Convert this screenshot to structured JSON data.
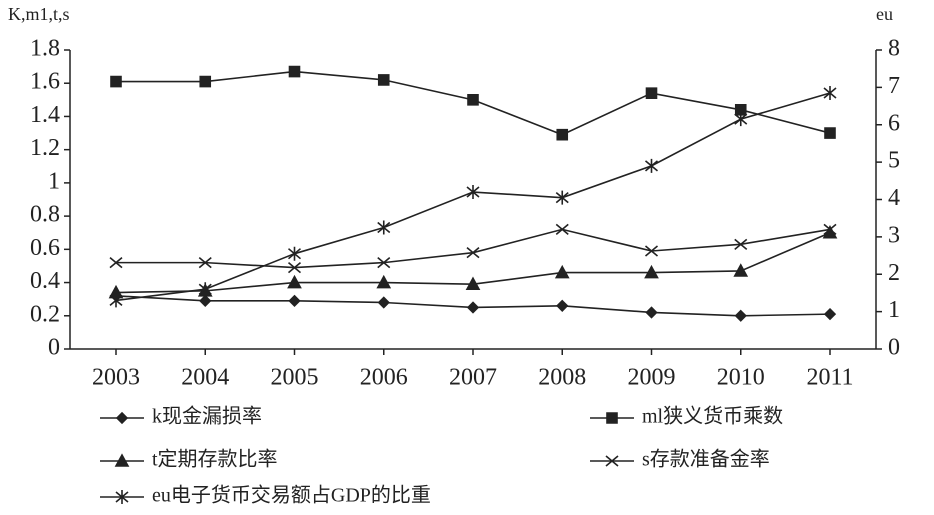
{
  "chart_data": {
    "type": "line",
    "ylabel": "K,m1,t,s",
    "y2label": "eu",
    "categories": [
      "2003",
      "2004",
      "2005",
      "2006",
      "2007",
      "2008",
      "2009",
      "2010",
      "2011"
    ],
    "ylim": [
      0,
      1.8
    ],
    "yticks": [
      0,
      0.2,
      0.4,
      0.6,
      0.8,
      1,
      1.2,
      1.4,
      1.6,
      1.8
    ],
    "y2lim": [
      0,
      8
    ],
    "y2ticks": [
      0,
      1,
      2,
      3,
      4,
      5,
      6,
      7,
      8
    ],
    "series": [
      {
        "name": "k现金漏损率",
        "color": "#222222",
        "marker": "diamond",
        "values": [
          0.32,
          0.29,
          0.29,
          0.28,
          0.25,
          0.26,
          0.22,
          0.2,
          0.21
        ]
      },
      {
        "name": "ml狭义货币乘数",
        "color": "#222222",
        "marker": "square",
        "values": [
          1.61,
          1.61,
          1.67,
          1.62,
          1.5,
          1.29,
          1.54,
          1.44,
          1.3
        ]
      },
      {
        "name": "t定期存款比率",
        "color": "#222222",
        "marker": "triangle",
        "values": [
          0.34,
          0.35,
          0.4,
          0.4,
          0.39,
          0.46,
          0.46,
          0.47,
          0.7
        ]
      },
      {
        "name": "s存款准备金率",
        "color": "#222222",
        "marker": "x",
        "values": [
          0.52,
          0.52,
          0.49,
          0.52,
          0.58,
          0.72,
          0.59,
          0.63,
          0.72
        ]
      },
      {
        "name": "eu电子货币交易额占GDP的比重",
        "color": "#222222",
        "marker": "asterisk",
        "axis": "y2",
        "values": [
          1.3,
          1.6,
          2.55,
          3.25,
          4.2,
          4.05,
          4.9,
          6.15,
          6.85
        ]
      }
    ]
  }
}
